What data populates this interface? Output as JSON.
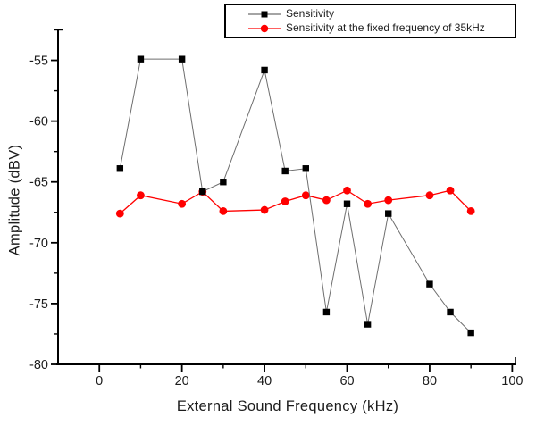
{
  "figure": {
    "background": "#ffffff",
    "axis_color": "#000000",
    "text_color": "#1c1c1c"
  },
  "chart_data": {
    "type": "line",
    "title": "",
    "xlabel": "External Sound Frequency  (kHz)",
    "ylabel": "Amplitude (dBV)",
    "xlim": [
      -10,
      101
    ],
    "ylim": [
      -80,
      -52.5
    ],
    "grid": false,
    "legend_position": "top-right",
    "x_major_ticks": [
      0,
      20,
      40,
      60,
      80,
      100
    ],
    "x_minor_ticks": [
      10,
      30,
      50,
      70,
      90
    ],
    "y_major_ticks": [
      -55,
      -60,
      -65,
      -70,
      -75,
      -80
    ],
    "y_minor_ticks": [
      -52.5,
      -57.5,
      -62.5,
      -67.5,
      -72.5,
      -77.5
    ],
    "x": [
      5,
      10,
      20,
      25,
      30,
      40,
      45,
      50,
      55,
      60,
      65,
      70,
      80,
      85,
      90
    ],
    "series": [
      {
        "name": "Sensitivity",
        "marker": "square",
        "marker_color": "#000000",
        "line_color": "#6e6e6e",
        "values": [
          -63.9,
          -54.9,
          -54.9,
          -65.8,
          -65.0,
          -55.8,
          -64.1,
          -63.9,
          -75.7,
          -66.8,
          -76.7,
          -67.6,
          -73.4,
          -75.7,
          -77.4
        ]
      },
      {
        "name": "Sensitivity at the fixed frequency of 35kHz",
        "marker": "circle",
        "marker_color": "#ff0000",
        "line_color": "#ff0000",
        "values": [
          -67.6,
          -66.1,
          -66.8,
          -65.8,
          -67.4,
          -67.3,
          -66.6,
          -66.1,
          -66.5,
          -65.7,
          -66.8,
          -66.5,
          -66.1,
          -65.7,
          -67.4
        ]
      }
    ]
  }
}
